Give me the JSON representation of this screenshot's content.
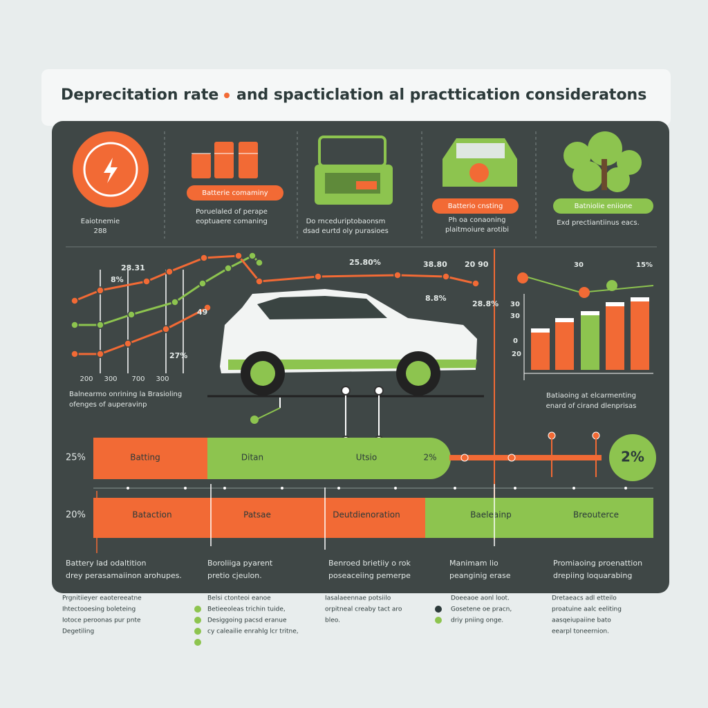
{
  "title": {
    "left": "Deprecitation rate",
    "right": "and spacticlation al practtication consideratons"
  },
  "icons": [
    {
      "caption": [
        "Eaiotnemie",
        "288"
      ]
    },
    {
      "pill": "Batterie comaminy",
      "caption": [
        "Poruelaled of perape",
        "eoptuaere comaning"
      ]
    },
    {
      "caption": [
        "Do rnceduriptobaonsm",
        "dsad eurtd oly purasioes"
      ]
    },
    {
      "pill": "Batterio cnsting",
      "caption": [
        "Ph oa conaoning",
        "plaitmoiure arotibi"
      ]
    },
    {
      "pill": "Batniolie eniione",
      "caption": [
        "Exd prectiantiinus eacs."
      ]
    }
  ],
  "line_chart": {
    "labels": [
      "28.31",
      "8%",
      "49",
      "27%",
      "25.80%",
      "38.80",
      "20 90",
      "8.8%",
      "28.8%"
    ],
    "x_labels": [
      "200",
      "300",
      "700",
      "300"
    ],
    "caption": [
      "Balnearmo onrining la Brasioling",
      "ofenges of auperavinp"
    ]
  },
  "bar_chart": {
    "labels": [
      "30",
      "15%",
      "30",
      "30",
      "0",
      "20"
    ],
    "caption": [
      "Batiaoing at elcarmenting",
      "enard of cirand dlenprisas"
    ]
  },
  "bands": [
    {
      "label": "25%",
      "segments": [
        "Batting",
        "Ditan",
        "Utsio",
        "2%"
      ],
      "badge": "2%"
    },
    {
      "label": "20%",
      "segments": [
        "Bataction",
        "Patsae",
        "Deutdienoration",
        "Baeleainp",
        "Breouterce"
      ]
    }
  ],
  "captions": [
    [
      "Battery lad odaltition",
      "drey perasamaiinon arohupes."
    ],
    [
      "Boroliiga pyarent",
      "pretio cjeulon."
    ],
    [
      "Benroed brietiiy o rok",
      "poseaceiing pemerpe"
    ],
    [
      "Manimam lio",
      "peanginig erase"
    ],
    [
      "Promiaoing proenattion",
      "drepiing loquarabing"
    ]
  ],
  "footer": [
    [
      "Prgnitiieyer eaotereeatne",
      "Ihtectooesing boleteing",
      "Iotoce peroonas pur pnte",
      "Degetiling"
    ],
    [
      "Belsi ctonteoi eanoe",
      "Betieeoleas trichin tuide,",
      "Desiggoing pacsd eranue",
      "cy caleailie enrahlg lcr tritne,"
    ],
    [
      "Iasalaeennae potsiilo",
      "orpitneal creaby tact aro",
      "bleo."
    ],
    [
      "Doeeaoe aonl loot.",
      "Gosetene oe pracn,",
      "driy pniing onge."
    ],
    [
      "Dretaeacs adl etteilo",
      "proatuine aalc eeliting",
      "aasqeiupaiine bato",
      "eearpl toneernion."
    ]
  ]
}
